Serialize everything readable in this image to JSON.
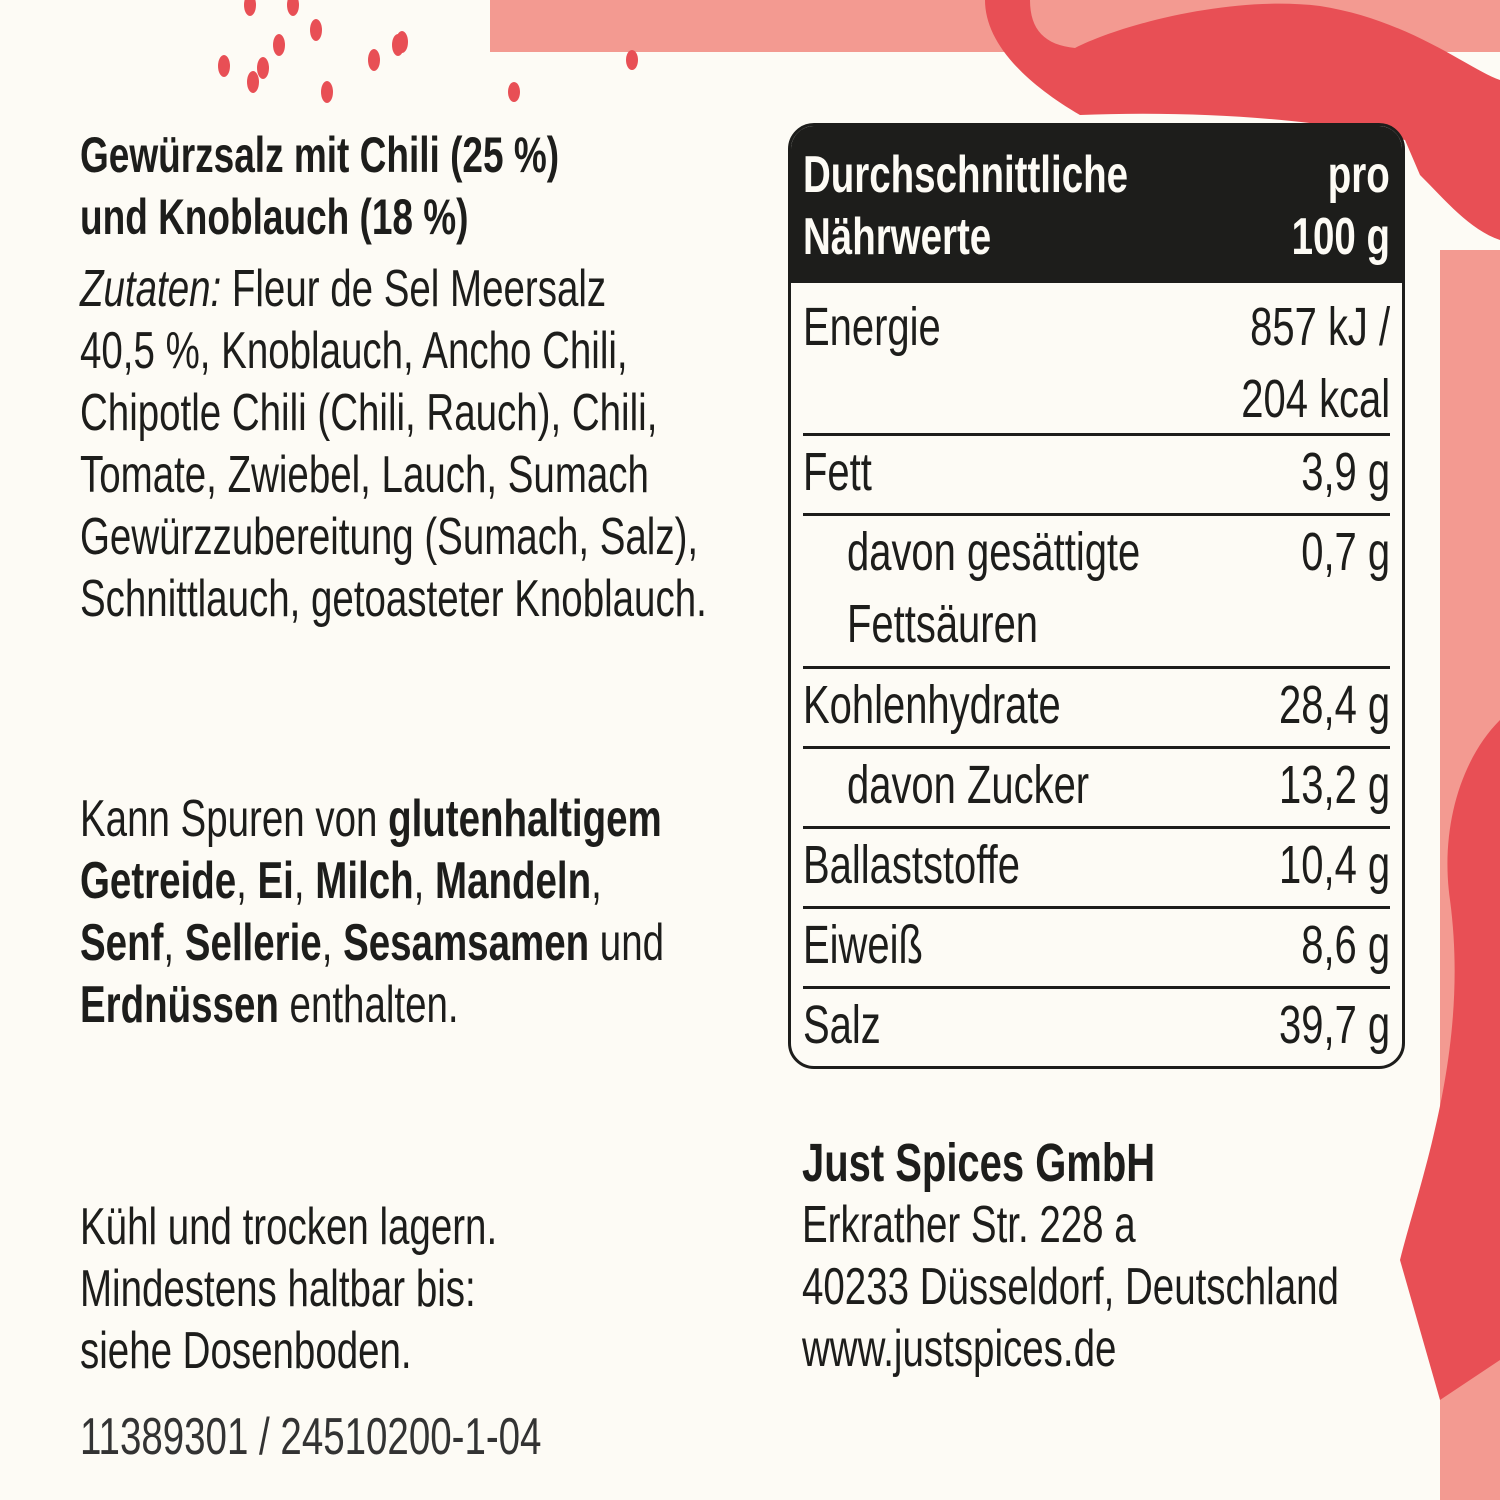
{
  "colors": {
    "background": "#fdfbf5",
    "accent_light": "#f39a91",
    "accent": "#e84f55",
    "text": "#1d1d1b"
  },
  "product": {
    "title": [
      "Gewürzsalz mit Chili (25 %)",
      "und Knoblauch (18 %)"
    ],
    "ingredients_label": "Zutaten:",
    "ingredients_lines": [
      " Fleur de Sel Meersalz",
      "40,5 %, Knoblauch, Ancho Chili,",
      "Chipotle Chili (Chili, Rauch), Chili,",
      "Tomate, Zwiebel, Lauch, Sumach",
      "Gewürzzubereitung (Sumach, Salz),",
      "Schnittlauch, getoasteter Knoblauch."
    ]
  },
  "allergens": {
    "l1a": "Kann Spuren von ",
    "l1b": "glutenhaltigem",
    "l2": [
      {
        "t": "Getreide",
        "b": true
      },
      {
        "t": ", ",
        "b": false
      },
      {
        "t": "Ei",
        "b": true
      },
      {
        "t": ", ",
        "b": false
      },
      {
        "t": "Milch",
        "b": true
      },
      {
        "t": ", ",
        "b": false
      },
      {
        "t": "Mandeln",
        "b": true
      },
      {
        "t": ",",
        "b": false
      }
    ],
    "l3": [
      {
        "t": "Senf",
        "b": true
      },
      {
        "t": ", ",
        "b": false
      },
      {
        "t": "Sellerie",
        "b": true
      },
      {
        "t": ", ",
        "b": false
      },
      {
        "t": "Sesamsamen",
        "b": true
      },
      {
        "t": " und",
        "b": false
      }
    ],
    "l4a": "Erdnüssen",
    "l4b": " enthalten."
  },
  "storage": [
    "Kühl und trocken lagern.",
    "Mindestens haltbar bis:",
    "siehe Dosenboden."
  ],
  "code": "11389301 / 24510200-1-04",
  "nutrition": {
    "header_left": [
      "Durchschnittliche",
      "Nährwerte"
    ],
    "header_right": [
      "pro",
      "100 g"
    ],
    "rows": [
      {
        "name": [
          "Energie"
        ],
        "value": [
          "857 kJ /",
          "204 kcal"
        ]
      },
      {
        "name": [
          "Fett"
        ],
        "value": [
          "3,9 g"
        ]
      },
      {
        "name": [
          "davon gesättigte",
          "Fettsäuren"
        ],
        "value": [
          "0,7 g"
        ],
        "sub": true
      },
      {
        "name": [
          "Kohlenhydrate"
        ],
        "value": [
          "28,4 g"
        ]
      },
      {
        "name": [
          "davon Zucker"
        ],
        "value": [
          "13,2 g"
        ],
        "sub": true
      },
      {
        "name": [
          "Ballaststoffe"
        ],
        "value": [
          "10,4 g"
        ]
      },
      {
        "name": [
          "Eiweiß"
        ],
        "value": [
          "8,6 g"
        ]
      },
      {
        "name": [
          "Salz"
        ],
        "value": [
          "39,7 g"
        ]
      }
    ]
  },
  "company": {
    "name": "Just Spices GmbH",
    "lines": [
      "Erkrather Str. 228 a",
      "40233 Düsseldorf, Deutschland",
      "www.justspices.de"
    ]
  }
}
